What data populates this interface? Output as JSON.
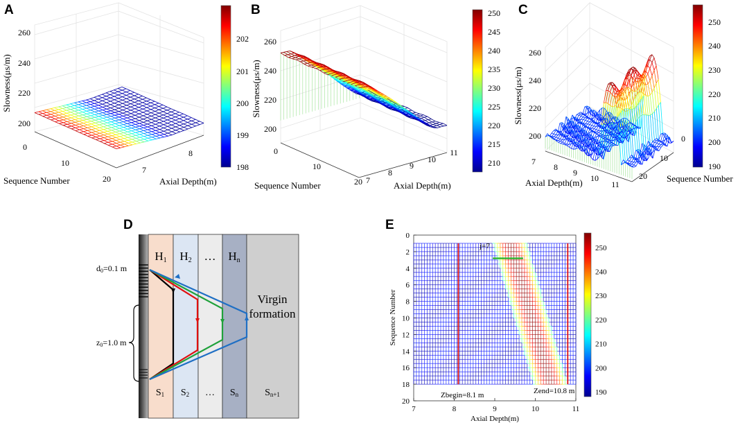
{
  "figure": {
    "panel_labels": [
      "A",
      "B",
      "C",
      "D",
      "E"
    ]
  },
  "chart_data": [
    {
      "panel": "A",
      "type": "surface",
      "zlabel": "Slowness(μs/m)",
      "xlabel": "Sequence Number",
      "ylabel": "Axial Depth(m)",
      "zticks": [
        "200",
        "220",
        "240",
        "260"
      ],
      "xticks": [
        "0",
        "10",
        "20"
      ],
      "yticks": [
        "7",
        "8"
      ],
      "zlim": [
        190,
        260
      ],
      "xlim": [
        0,
        20
      ],
      "ylim": [
        6.5,
        8.6
      ],
      "colorbar": {
        "ticks": [
          "198",
          "199",
          "200",
          "201",
          "202"
        ],
        "range": [
          197.8,
          202.8
        ]
      },
      "surface": {
        "z_low": 198,
        "z_high": 202.5,
        "trend": "slowness decreases with depth, nearly flat along sequence"
      }
    },
    {
      "panel": "B",
      "type": "surface",
      "zlabel": "Slowness(μs/m)",
      "xlabel": "Sequence Number",
      "ylabel": "Axial Depth(m)",
      "zticks": [
        "200",
        "220",
        "240",
        "260"
      ],
      "xticks": [
        "0",
        "10",
        "20"
      ],
      "yticks": [
        "7",
        "8",
        "9",
        "10",
        "11"
      ],
      "zlim": [
        190,
        265
      ],
      "xlim": [
        0,
        20
      ],
      "ylim": [
        7,
        11
      ],
      "colorbar": {
        "ticks": [
          "210",
          "215",
          "220",
          "225",
          "230",
          "235",
          "240",
          "245",
          "250"
        ],
        "range": [
          208,
          251
        ]
      },
      "surface": {
        "z_low": 208,
        "z_high": 250,
        "trend": "slowness decreases from ~250 at shallow depth to ~208 at depth 11 m"
      }
    },
    {
      "panel": "C",
      "type": "surface",
      "zlabel": "Slowness(μs/m)",
      "xlabel": "Sequence Number",
      "ylabel": "Axial Depth(m)",
      "zticks": [
        "200",
        "220",
        "240",
        "260"
      ],
      "xticks": [
        "0",
        "10",
        "20"
      ],
      "yticks": [
        "7",
        "8",
        "9",
        "10",
        "11"
      ],
      "zlim": [
        190,
        265
      ],
      "xlim": [
        0,
        20
      ],
      "ylim": [
        7,
        11
      ],
      "colorbar": {
        "ticks": [
          "190",
          "200",
          "210",
          "220",
          "230",
          "240",
          "250"
        ],
        "range": [
          188,
          256
        ]
      },
      "surface": {
        "baseline": 200,
        "peak": 256,
        "trend": "flat noisy ~200 with a sharp ridge to ~256 between depths 9.5 and 10.5 m"
      }
    },
    {
      "panel": "E",
      "type": "heatmap",
      "xlabel": "Axial Depth(m)",
      "ylabel": "Sequence Number",
      "xticks": [
        "7",
        "8",
        "9",
        "10",
        "11"
      ],
      "yticks": [
        "0",
        "2",
        "4",
        "6",
        "8",
        "10",
        "12",
        "14",
        "16",
        "18",
        "20"
      ],
      "xlim": [
        7,
        11
      ],
      "ylim": [
        0,
        20
      ],
      "colorbar": {
        "ticks": [
          "190",
          "200",
          "210",
          "220",
          "230",
          "240",
          "250"
        ],
        "range": [
          188,
          256
        ]
      },
      "annotations": {
        "j_label": "j=7",
        "zbegin_label": "Zbegin=8.1 m",
        "zend_label": "Zend=10.8 m"
      },
      "vertical_lines": [
        8.1,
        10.8
      ],
      "j_segment": {
        "seq": 2.8,
        "x_from": 8.95,
        "x_to": 9.7
      },
      "band": {
        "seq_from": 1,
        "seq_to": 18,
        "depth_start_top": 8.95,
        "depth_start_bottom": 9.95,
        "width": 0.85
      }
    }
  ],
  "diagram_d": {
    "layers": [
      "H",
      "H",
      "…",
      "H"
    ],
    "layer_subs": [
      "1",
      "2",
      "",
      "n"
    ],
    "bottom": [
      "S",
      "S",
      "…",
      "S",
      "S"
    ],
    "bottom_subs": [
      "1",
      "2",
      "",
      "n",
      "n+1"
    ],
    "virgin_line1": "Virgin",
    "virgin_line2": "formation",
    "d0_label": "d",
    "d0_sub": "0",
    "d0_value": "=0.1 m",
    "z0_label": "z",
    "z0_sub": "0",
    "z0_value": "=1.0 m"
  },
  "colors": {
    "h1": "#f8ddcc",
    "h2": "#dce6f3",
    "h3": "#ececec",
    "hn": "#a7b0c4",
    "virgin": "#cfcfcf",
    "red_line": "#e01010",
    "green_line": "#22b022"
  }
}
